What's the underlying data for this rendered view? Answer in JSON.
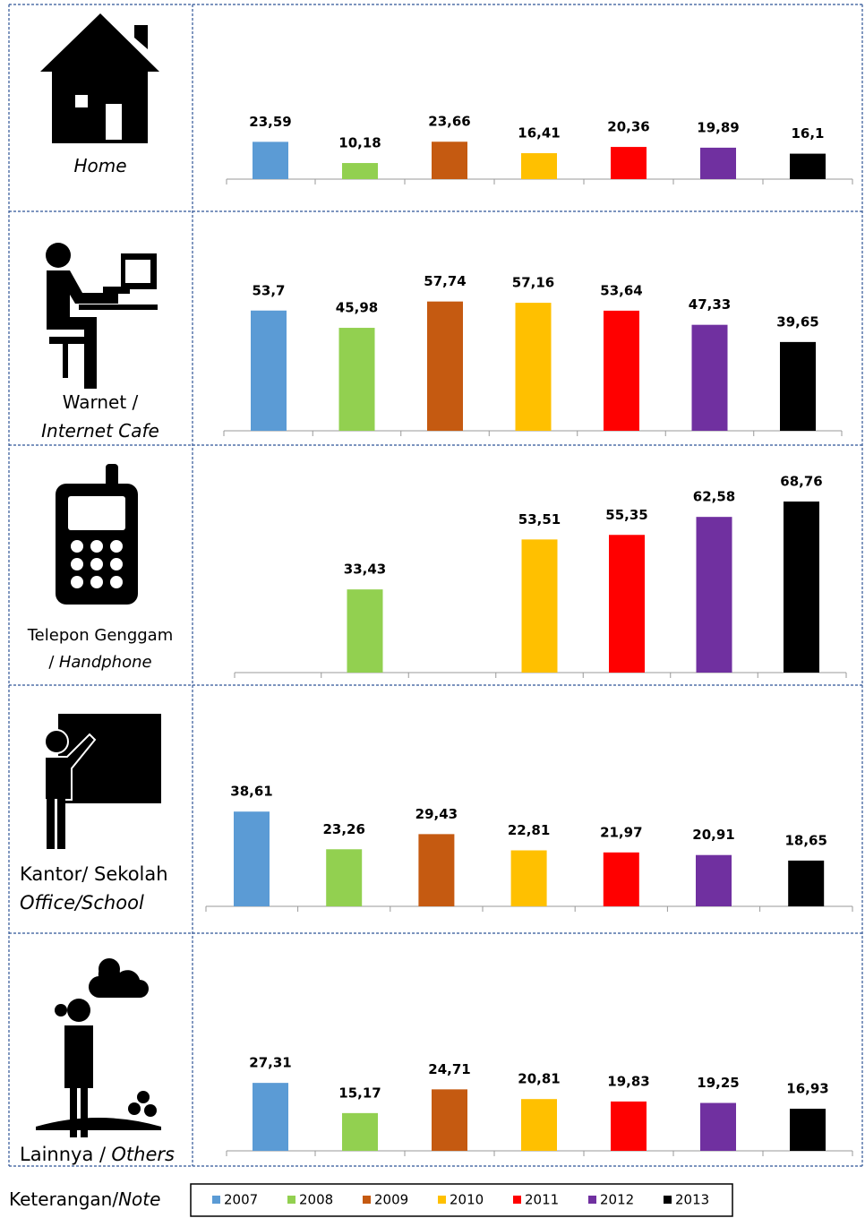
{
  "chart_data": [
    {
      "type": "bar",
      "label": [
        [
          {
            "text": "Home",
            "italic": true
          }
        ]
      ],
      "values": [
        23.59,
        10.18,
        23.66,
        16.41,
        20.36,
        19.89,
        16.1
      ],
      "value_labels": [
        "23,59",
        "10,18",
        "23,66",
        "16,41",
        "20,36",
        "19,89",
        "16,1"
      ],
      "ylim": [
        0,
        85
      ]
    },
    {
      "type": "bar",
      "label": [
        [
          {
            "text": "Warnet /"
          }
        ],
        [
          {
            "text": "Internet Cafe",
            "italic": true
          }
        ]
      ],
      "values": [
        53.7,
        45.98,
        57.74,
        57.16,
        53.64,
        47.33,
        39.65
      ],
      "value_labels": [
        "53,7",
        "45,98",
        "57,74",
        "57,16",
        "53,64",
        "47,33",
        "39,65"
      ],
      "ylim": [
        0,
        80
      ]
    },
    {
      "type": "bar",
      "label": [
        [
          {
            "text": "Telepon Genggam"
          }
        ],
        [
          {
            "text": "/"
          },
          {
            "text": "Handphone",
            "italic": true
          }
        ]
      ],
      "values": [
        null,
        33.43,
        null,
        53.51,
        55.35,
        62.58,
        68.76
      ],
      "value_labels": [
        null,
        "33,43",
        null,
        "53,51",
        "55,35",
        "62,58",
        "68,76"
      ],
      "ylim": [
        0,
        72
      ]
    },
    {
      "type": "bar",
      "label": [
        [
          {
            "text": "Kantor/ Sekolah"
          }
        ],
        [
          {
            "text": "Office/School",
            "italic": true
          }
        ]
      ],
      "values": [
        38.61,
        23.26,
        29.43,
        22.81,
        21.97,
        20.91,
        18.65
      ],
      "value_labels": [
        "38,61",
        "23,26",
        "29,43",
        "22,81",
        "21,97",
        "20,91",
        "18,65"
      ],
      "ylim": [
        0,
        73
      ]
    },
    {
      "type": "bar",
      "label": [
        [
          {
            "text": "Lainnya /"
          },
          {
            "text": "Others",
            "italic": true
          }
        ]
      ],
      "values": [
        27.31,
        15.17,
        24.71,
        20.81,
        19.83,
        19.25,
        16.93
      ],
      "value_labels": [
        "27,31",
        "15,17",
        "24,71",
        "20,81",
        "19,83",
        "19,25",
        "16,93"
      ],
      "ylim": [
        0,
        72
      ]
    }
  ],
  "legend": {
    "label": [
      {
        "text": "Keterangan/"
      },
      {
        "text": "Note",
        "italic": true
      }
    ],
    "series": [
      {
        "name": "2007",
        "color": "#5b9bd5"
      },
      {
        "name": "2008",
        "color": "#92d050"
      },
      {
        "name": "2009",
        "color": "#c55a11"
      },
      {
        "name": "2010",
        "color": "#ffc000"
      },
      {
        "name": "2011",
        "color": "#ff0000"
      },
      {
        "name": "2012",
        "color": "#7030a0"
      },
      {
        "name": "2013",
        "color": "#000000"
      }
    ]
  }
}
